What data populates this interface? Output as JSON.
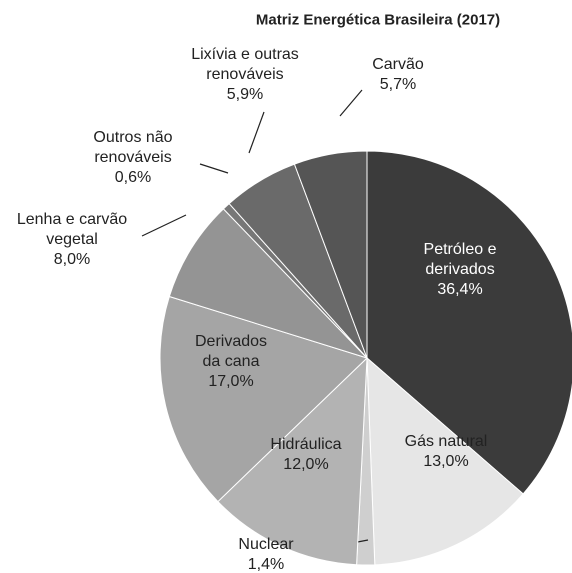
{
  "chart_data": {
    "type": "pie",
    "title": "Matriz Energética Brasileira (2017)",
    "categories": [
      "Petróleo e\nderivados",
      "Gás natural",
      "Nuclear",
      "Hidráulica",
      "Derivados\nda cana",
      "Lenha e carvão\nvegetal",
      "Outros não\nrenováveis",
      "Lixívia e outras\nrenováveis",
      "Carvão"
    ],
    "values": [
      36.4,
      13.0,
      1.4,
      12.0,
      17.0,
      8.0,
      0.6,
      5.9,
      5.7
    ],
    "value_labels": [
      "36,4%",
      "13,0%",
      "1,4%",
      "12,0%",
      "17,0%",
      "8,0%",
      "0,6%",
      "5,9%",
      "5,7%"
    ],
    "colors": [
      "#3b3b3b",
      "#e6e6e6",
      "#cfcfcf",
      "#b3b3b3",
      "#a5a5a5",
      "#949494",
      "#777777",
      "#6a6a6a",
      "#555555"
    ]
  }
}
